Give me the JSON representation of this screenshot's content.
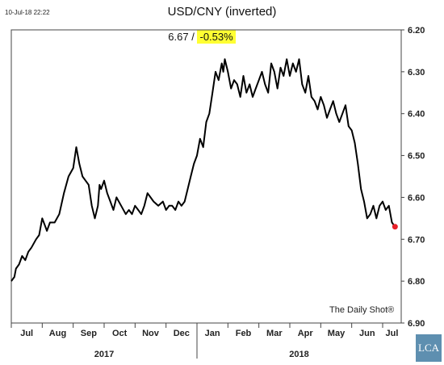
{
  "timestamp": "10-Jul-18 22:22",
  "header": {
    "title": "USD/CNY (inverted)",
    "last_value": "6.67",
    "separator": "/",
    "change": "-0.53%"
  },
  "credit": "The Daily Shot®",
  "logo": "LCA",
  "colors": {
    "line": "#000000",
    "last_point": "#e8202a",
    "highlight": "#ffff33",
    "logo_bg": "#5e8fb0"
  },
  "chart_data": {
    "type": "line",
    "title": "USD/CNY (inverted)",
    "y_axis": {
      "side": "right",
      "inverted": true,
      "ylim": [
        6.2,
        6.9
      ],
      "ticks": [
        "6.20",
        "6.30",
        "6.40",
        "6.50",
        "6.60",
        "6.70",
        "6.80",
        "6.90"
      ]
    },
    "x_axis": {
      "xlim": [
        0,
        12.6
      ],
      "months": [
        "Jul",
        "Aug",
        "Sep",
        "Oct",
        "Nov",
        "Dec",
        "Jan",
        "Feb",
        "Mar",
        "Apr",
        "May",
        "Jun",
        "Jul"
      ],
      "years": [
        {
          "label": "2017",
          "from": 0,
          "to": 6
        },
        {
          "label": "2018",
          "from": 6,
          "to": 12.6
        }
      ]
    },
    "grid": false,
    "series": [
      {
        "x": [
          0.0,
          0.1,
          0.15,
          0.25,
          0.35,
          0.45,
          0.55,
          0.65,
          0.8,
          0.9,
          1.0,
          1.1,
          1.15,
          1.25,
          1.4,
          1.55,
          1.7,
          1.85,
          2.0,
          2.1,
          2.2,
          2.3,
          2.4,
          2.5,
          2.6,
          2.7,
          2.8,
          2.85,
          2.9,
          3.0,
          3.1,
          3.2,
          3.3,
          3.4,
          3.55,
          3.7,
          3.8,
          3.9,
          4.0,
          4.1,
          4.2,
          4.3,
          4.4,
          4.5,
          4.6,
          4.75,
          4.9,
          5.0,
          5.1,
          5.2,
          5.3,
          5.4,
          5.5,
          5.6,
          5.7,
          5.8,
          5.9,
          6.0,
          6.1,
          6.2,
          6.3,
          6.4,
          6.5,
          6.6,
          6.7,
          6.8,
          6.85,
          6.9,
          7.0,
          7.1,
          7.2,
          7.3,
          7.4,
          7.5,
          7.6,
          7.7,
          7.8,
          7.9,
          8.0,
          8.1,
          8.2,
          8.3,
          8.4,
          8.5,
          8.6,
          8.7,
          8.8,
          8.9,
          9.0,
          9.1,
          9.2,
          9.3,
          9.4,
          9.5,
          9.6,
          9.7,
          9.8,
          9.9,
          10.0,
          10.1,
          10.2,
          10.3,
          10.4,
          10.5,
          10.6,
          10.7,
          10.8,
          10.9,
          11.0,
          11.1,
          11.2,
          11.3,
          11.4,
          11.5,
          11.6,
          11.7,
          11.8,
          11.9,
          12.0,
          12.1,
          12.2,
          12.3,
          12.4
        ],
        "y": [
          6.8,
          6.79,
          6.77,
          6.76,
          6.74,
          6.75,
          6.73,
          6.72,
          6.7,
          6.69,
          6.65,
          6.67,
          6.68,
          6.66,
          6.66,
          6.64,
          6.59,
          6.55,
          6.53,
          6.48,
          6.52,
          6.55,
          6.56,
          6.57,
          6.62,
          6.65,
          6.62,
          6.57,
          6.58,
          6.56,
          6.59,
          6.61,
          6.63,
          6.6,
          6.62,
          6.64,
          6.63,
          6.64,
          6.62,
          6.63,
          6.64,
          6.62,
          6.59,
          6.6,
          6.61,
          6.62,
          6.61,
          6.63,
          6.62,
          6.62,
          6.63,
          6.61,
          6.62,
          6.61,
          6.58,
          6.55,
          6.52,
          6.5,
          6.46,
          6.48,
          6.42,
          6.4,
          6.35,
          6.3,
          6.32,
          6.28,
          6.3,
          6.27,
          6.3,
          6.34,
          6.32,
          6.33,
          6.36,
          6.31,
          6.35,
          6.33,
          6.36,
          6.34,
          6.32,
          6.3,
          6.33,
          6.35,
          6.28,
          6.3,
          6.34,
          6.29,
          6.31,
          6.27,
          6.31,
          6.28,
          6.3,
          6.27,
          6.33,
          6.35,
          6.31,
          6.36,
          6.37,
          6.39,
          6.36,
          6.38,
          6.41,
          6.39,
          6.37,
          6.4,
          6.42,
          6.4,
          6.38,
          6.43,
          6.44,
          6.47,
          6.52,
          6.58,
          6.61,
          6.65,
          6.64,
          6.62,
          6.65,
          6.62,
          6.61,
          6.63,
          6.62,
          6.66,
          6.67
        ]
      }
    ],
    "last_point": {
      "x": 12.4,
      "y": 6.67
    }
  }
}
